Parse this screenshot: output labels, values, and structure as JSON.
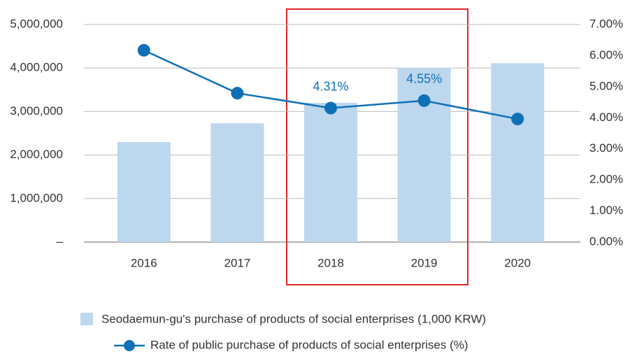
{
  "chart_data": {
    "type": "bar-line",
    "categories": [
      "2016",
      "2017",
      "2018",
      "2019",
      "2020"
    ],
    "series": [
      {
        "name": "Seodaemun-gu's purchase of products of social enterprises (1,000 KRW)",
        "type": "bar",
        "color": "#bdd7ee",
        "values": [
          2300000,
          2730000,
          3200000,
          4000000,
          4110000
        ]
      },
      {
        "name": "Rate of public purchase of products of social enterprises (%)",
        "type": "line",
        "axis": "y2",
        "color": "#0f70b7",
        "values": [
          6.17,
          4.79,
          4.31,
          4.55,
          3.96
        ],
        "value_labels": [
          null,
          null,
          "4.31%",
          "4.55%",
          null
        ]
      }
    ],
    "ylim": [
      0,
      5000000
    ],
    "yticks": [
      {
        "value": 0,
        "label": "–"
      },
      {
        "value": 1000000,
        "label": "1,000,000"
      },
      {
        "value": 2000000,
        "label": "2,000,000"
      },
      {
        "value": 3000000,
        "label": "3,000,000"
      },
      {
        "value": 4000000,
        "label": "4,000,000"
      },
      {
        "value": 5000000,
        "label": "5,000,000"
      }
    ],
    "y2lim": [
      0,
      7
    ],
    "y2ticks": [
      {
        "value": 0,
        "label": "0.00%"
      },
      {
        "value": 1,
        "label": "1.00%"
      },
      {
        "value": 2,
        "label": "2.00%"
      },
      {
        "value": 3,
        "label": "3.00%"
      },
      {
        "value": 4,
        "label": "4.00%"
      },
      {
        "value": 5,
        "label": "5.00%"
      },
      {
        "value": 6,
        "label": "6.00%"
      },
      {
        "value": 7,
        "label": "7.00%"
      }
    ],
    "grid": true
  }
}
